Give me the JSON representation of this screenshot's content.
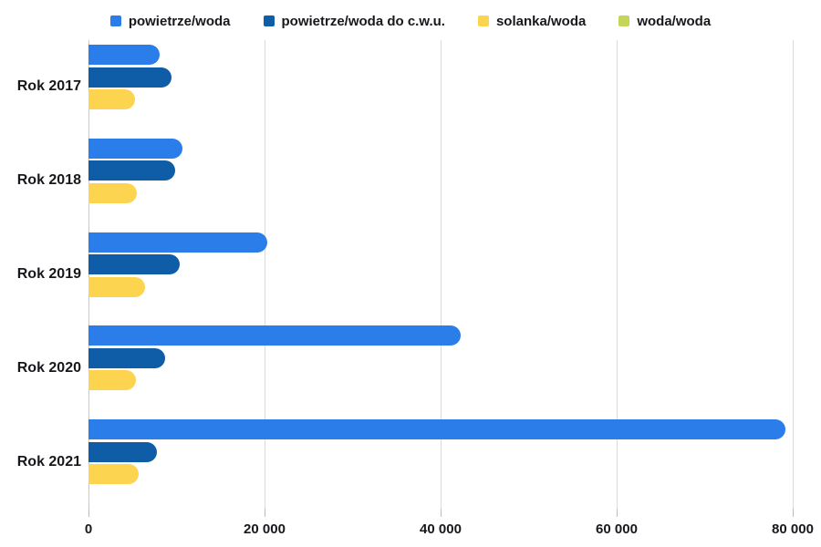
{
  "chart_data": {
    "type": "bar",
    "orientation": "horizontal",
    "title": "",
    "xlabel": "",
    "ylabel": "",
    "categories": [
      "Rok 2017",
      "Rok 2018",
      "Rok 2019",
      "Rok 2020",
      "Rok 2021"
    ],
    "series": [
      {
        "name": "powietrze/woda",
        "color": "#2b7de9",
        "values": [
          8100,
          10700,
          20300,
          42300,
          79200
        ]
      },
      {
        "name": "powietrze/woda do c.w.u.",
        "color": "#0f5da6",
        "values": [
          9400,
          9800,
          10400,
          8700,
          7800
        ]
      },
      {
        "name": "solanka/woda",
        "color": "#fcd44f",
        "values": [
          5300,
          5500,
          6400,
          5400,
          5700
        ]
      },
      {
        "name": "woda/woda",
        "color": "#c5d559",
        "values": [
          0,
          0,
          0,
          0,
          0
        ]
      }
    ],
    "xlim": [
      0,
      80000
    ],
    "x_ticks": [
      0,
      20000,
      40000,
      60000,
      80000
    ],
    "x_tick_labels": [
      "0",
      "20 000",
      "40 000",
      "60 000",
      "80 000"
    ],
    "legend_position": "top",
    "grid": "vertical-only"
  },
  "colors": {
    "background": "#ffffff",
    "text": "#17181c",
    "gridline": "#dbdbdb",
    "zero_line": "#cfc9bd",
    "tick": "#bdbdbd"
  }
}
